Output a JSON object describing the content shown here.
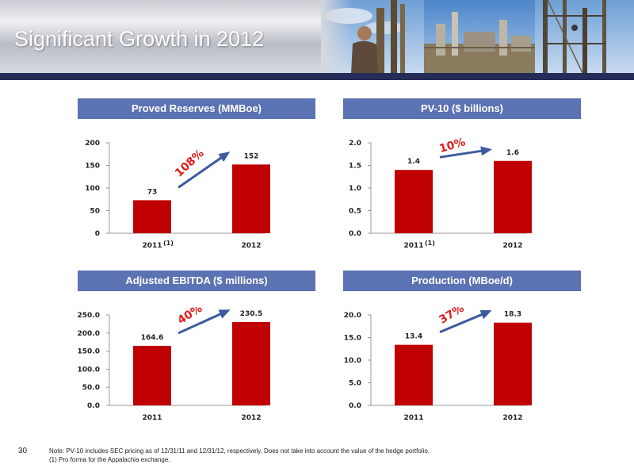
{
  "slide": {
    "title": "Significant Growth in 2012",
    "number": "30",
    "note_lines": [
      "Note: PV-10 includes SEC pricing as of 12/31/11 and 12/31/12, respectively. Does not take into account the value of the hedge portfolio.",
      "(1) Pro forma for the Appalachia exchange."
    ]
  },
  "colors": {
    "bar": "#c00000",
    "panel_title_bg": "#5b72b3",
    "header_bar": "#262c58",
    "growth_text": "#e01b1b",
    "growth_arrow": "#3e5a9e"
  },
  "chart_data": [
    {
      "type": "bar",
      "title": "Proved Reserves (MMBoe)",
      "categories": [
        "2011",
        "2012"
      ],
      "category_footnotes": [
        "(1)",
        ""
      ],
      "values": [
        73,
        152
      ],
      "value_labels": [
        "73",
        "152"
      ],
      "ylim": [
        0,
        200
      ],
      "yticks": [
        0,
        50,
        100,
        150,
        200
      ],
      "ytick_labels": [
        "0",
        "50",
        "100",
        "150",
        "200"
      ],
      "growth": "108%",
      "grid": false
    },
    {
      "type": "bar",
      "title": "PV-10 ($ billions)",
      "categories": [
        "2011",
        "2012"
      ],
      "category_footnotes": [
        "(1)",
        ""
      ],
      "values": [
        1.4,
        1.6
      ],
      "value_labels": [
        "1.4",
        "1.6"
      ],
      "ylim": [
        0,
        2.0
      ],
      "yticks": [
        0,
        0.5,
        1.0,
        1.5,
        2.0
      ],
      "ytick_labels": [
        "0.0",
        "0.5",
        "1.0",
        "1.5",
        "2.0"
      ],
      "growth": "10%",
      "grid": false
    },
    {
      "type": "bar",
      "title": "Adjusted EBITDA ($ millions)",
      "categories": [
        "2011",
        "2012"
      ],
      "category_footnotes": [
        "",
        ""
      ],
      "values": [
        164.6,
        230.5
      ],
      "value_labels": [
        "164.6",
        "230.5"
      ],
      "ylim": [
        0,
        250
      ],
      "yticks": [
        0,
        50,
        100,
        150,
        200,
        250
      ],
      "ytick_labels": [
        "0.0",
        "50.0",
        "100.0",
        "150.0",
        "200.0",
        "250.0"
      ],
      "growth": "40%",
      "grid": false
    },
    {
      "type": "bar",
      "title": "Production (MBoe/d)",
      "categories": [
        "2011",
        "2012"
      ],
      "category_footnotes": [
        "",
        ""
      ],
      "values": [
        13.4,
        18.3
      ],
      "value_labels": [
        "13.4",
        "18.3"
      ],
      "ylim": [
        0,
        20
      ],
      "yticks": [
        0,
        5,
        10,
        15,
        20
      ],
      "ytick_labels": [
        "0.0",
        "5.0",
        "10.0",
        "15.0",
        "20.0"
      ],
      "growth": "37%",
      "grid": false
    }
  ]
}
